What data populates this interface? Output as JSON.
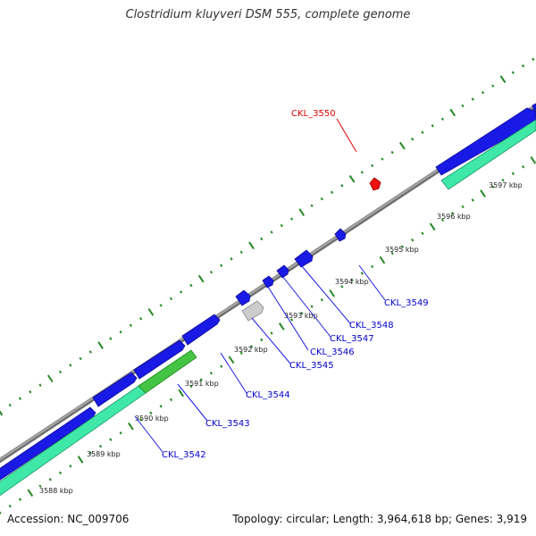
{
  "title": "Clostridium kluyveri DSM 555, complete genome",
  "footer": {
    "accession": "Accession: NC_009706",
    "topology": "Topology: circular; Length: 3,964,618 bp; Genes: 3,919"
  },
  "colors": {
    "backbone": "#8a8a8a",
    "cds_blue": "#1a1ae6",
    "cds_teal": "#40e8a8",
    "highlight_green": "#44c444",
    "pseudo_gray": "#cccccc",
    "target_red": "#ee1111",
    "tick_green": "#228822",
    "label_blue": "#0000cc",
    "label_red": "#dd0000"
  },
  "scale_ticks": [
    "3588 kbp",
    "3589 kbp",
    "3590 kbp",
    "3591 kbp",
    "3592 kbp",
    "3593 kbp",
    "3594 kbp",
    "3595 kbp",
    "3596 kbp",
    "3597 kbp"
  ],
  "gene_labels": [
    {
      "name": "CKL_3542",
      "color": "blue"
    },
    {
      "name": "CKL_3543",
      "color": "blue"
    },
    {
      "name": "CKL_3544",
      "color": "blue"
    },
    {
      "name": "CKL_3545",
      "color": "blue"
    },
    {
      "name": "CKL_3546",
      "color": "blue"
    },
    {
      "name": "CKL_3547",
      "color": "blue"
    },
    {
      "name": "CKL_3548",
      "color": "blue"
    },
    {
      "name": "CKL_3549",
      "color": "blue"
    },
    {
      "name": "CKL_3550",
      "color": "red"
    }
  ]
}
